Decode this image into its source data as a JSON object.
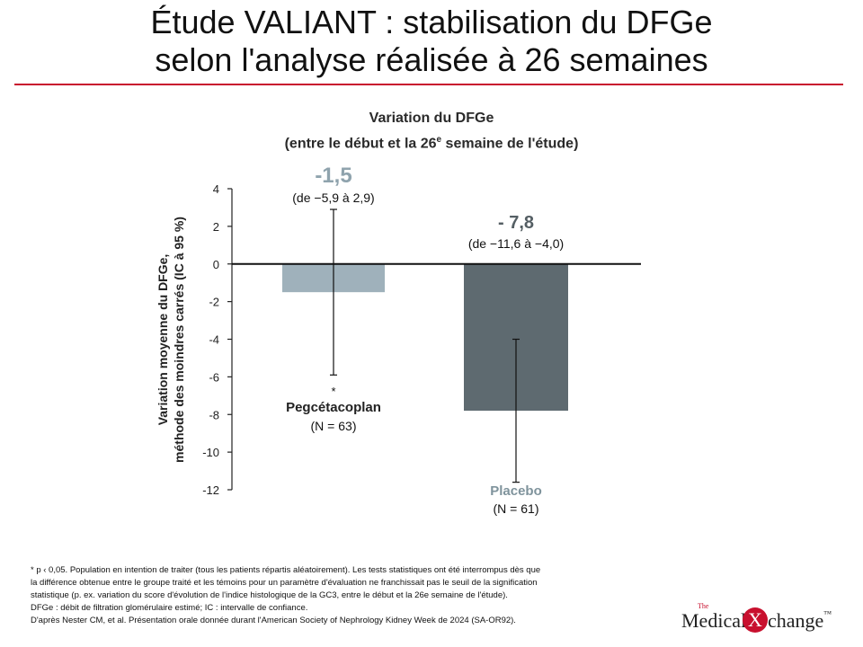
{
  "header": {
    "title_line1": "Étude VALIANT : stabilisation du DFGe",
    "title_line2": "selon l'analyse réalisée à 26 semaines"
  },
  "colors": {
    "accent_rule": "#c8102e",
    "pegcetacoplan_bar": "#9fb1bb",
    "placebo_bar": "#5e6a70",
    "pegcetacoplan_value": "#8fa3ad",
    "placebo_value": "#555f64"
  },
  "chart_data": {
    "type": "bar",
    "title_line1": "Variation du DFGe",
    "title_line2_pre": "(entre le début et la 26",
    "title_line2_sup": "e",
    "title_line2_post": " semaine de l'étude)",
    "ylabel_line1": "Variation moyenne du DFGe,",
    "ylabel_line2": "méthode des moindres carrés (IC à 95 %)",
    "ylim": [
      -12,
      4
    ],
    "yticks": [
      4,
      2,
      0,
      -2,
      -4,
      -6,
      -8,
      -10,
      -12
    ],
    "ytick_labels": [
      "4",
      "2",
      "0",
      "-2",
      "-4",
      "-6",
      "-8",
      "-10",
      "-12"
    ],
    "grid": false,
    "categories": [
      "Pegcétacoplan",
      "Placebo"
    ],
    "series": [
      {
        "category": "Pegcétacoplan",
        "value": -1.5,
        "ci_low": -5.9,
        "ci_high": 2.9,
        "value_label": "-1,5",
        "ci_label": "(de −5,9 à 2,9)",
        "name_label": "Pegcétacoplan",
        "n_label": "(N = 63)",
        "marker": "*"
      },
      {
        "category": "Placebo",
        "value": -7.8,
        "ci_low": -11.6,
        "ci_high": -4.0,
        "value_label": "- 7,8",
        "ci_label": "(de −11,6 à −4,0)",
        "name_label": "Placebo",
        "n_label": "(N = 61)",
        "marker": ""
      }
    ]
  },
  "footnotes": {
    "line1": "* p ‹ 0,05. Population en intention de traiter (tous les patients répartis aléatoirement). Les tests statistiques ont été interrompus dès que",
    "line2": "la différence obtenue entre le groupe traité et les témoins pour un paramètre d'évaluation ne franchissait pas le seuil de la signification",
    "line3": "statistique (p. ex. variation du score d'évolution de l'indice histologique de la GC3, entre le début et la 26e semaine de l'étude).",
    "line4": "DFGe : débit de filtration glomérulaire estimé; IC : intervalle de confiance.",
    "line5": "D'après Nester CM, et al. Présentation orale donnée durant l'American Society of Nephrology Kidney Week de 2024 (SA-OR92)."
  },
  "brand": {
    "the": "The",
    "word1": "Medical",
    "x": "X",
    "word2": "change",
    "tm": "™"
  }
}
